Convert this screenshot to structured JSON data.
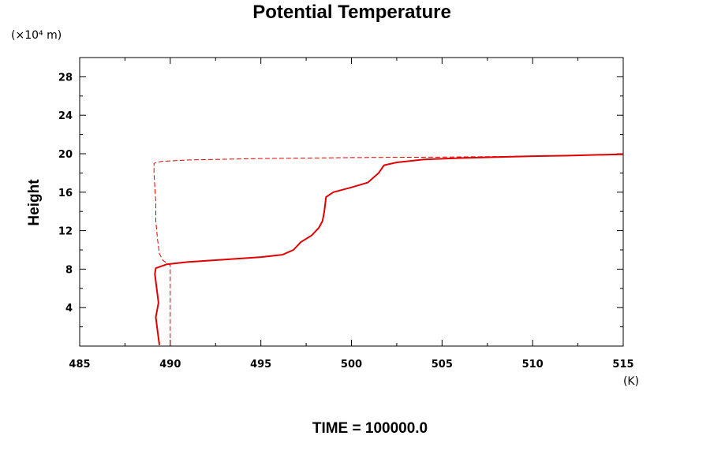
{
  "chart_data": {
    "type": "line",
    "title": "Potential Temperature",
    "ylabel": "Height",
    "y_units": "(×10⁴ m)",
    "x_units": "(K)",
    "footer": "TIME = 100000.0",
    "xlim": [
      485,
      515
    ],
    "ylim": [
      0,
      30
    ],
    "x_ticks": [
      485,
      490,
      495,
      500,
      505,
      510,
      515
    ],
    "y_ticks": [
      4,
      8,
      12,
      16,
      20,
      24,
      28
    ],
    "grid": false,
    "series_color": "#e00000",
    "series": [
      {
        "style": "dashed",
        "points": [
          [
            490.0,
            0.1
          ],
          [
            490.0,
            8.4
          ],
          [
            489.6,
            8.9
          ],
          [
            489.4,
            9.6
          ],
          [
            489.3,
            11.0
          ],
          [
            489.2,
            13.0
          ],
          [
            489.2,
            15.0
          ],
          [
            489.15,
            16.5
          ],
          [
            489.1,
            18.0
          ],
          [
            489.1,
            19.0
          ],
          [
            489.5,
            19.2
          ],
          [
            491.0,
            19.35
          ],
          [
            495.0,
            19.5
          ],
          [
            500.0,
            19.6
          ],
          [
            505.0,
            19.65
          ],
          [
            510.0,
            19.75
          ],
          [
            515.0,
            19.9
          ]
        ]
      },
      {
        "style": "solid",
        "points": [
          [
            489.4,
            0.1
          ],
          [
            489.3,
            1.5
          ],
          [
            489.2,
            3.0
          ],
          [
            489.35,
            4.5
          ],
          [
            489.25,
            6.0
          ],
          [
            489.15,
            7.5
          ],
          [
            489.2,
            8.1
          ],
          [
            489.8,
            8.5
          ],
          [
            491.0,
            8.75
          ],
          [
            493.0,
            9.0
          ],
          [
            495.0,
            9.25
          ],
          [
            496.2,
            9.5
          ],
          [
            496.8,
            10.0
          ],
          [
            497.2,
            10.8
          ],
          [
            497.8,
            11.5
          ],
          [
            498.2,
            12.3
          ],
          [
            498.4,
            13.0
          ],
          [
            498.5,
            14.0
          ],
          [
            498.6,
            15.5
          ],
          [
            499.0,
            16.0
          ],
          [
            500.0,
            16.5
          ],
          [
            500.9,
            17.0
          ],
          [
            501.5,
            18.0
          ],
          [
            501.8,
            18.8
          ],
          [
            502.5,
            19.1
          ],
          [
            504.0,
            19.4
          ],
          [
            506.0,
            19.55
          ],
          [
            508.0,
            19.65
          ],
          [
            510.0,
            19.75
          ],
          [
            512.0,
            19.8
          ],
          [
            515.0,
            19.95
          ]
        ]
      }
    ]
  }
}
